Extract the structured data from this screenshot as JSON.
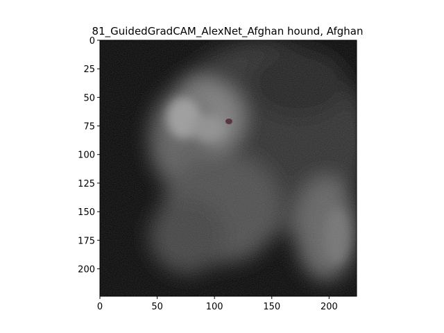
{
  "figure": {
    "title": "81_GuidedGradCAM_AlexNet_Afghan hound, Afghan"
  },
  "chart_data": {
    "type": "heatmap",
    "title": "81_GuidedGradCAM_AlexNet_Afghan hound, Afghan",
    "xlabel": "",
    "ylabel": "",
    "xlim": [
      0,
      224
    ],
    "ylim": [
      224,
      0
    ],
    "x_ticks": [
      0,
      50,
      100,
      150,
      200
    ],
    "y_ticks": [
      0,
      25,
      50,
      75,
      100,
      125,
      150,
      175,
      200
    ],
    "x_tick_labels": [
      "0",
      "50",
      "100",
      "150",
      "200"
    ],
    "y_tick_labels": [
      "0",
      "25",
      "50",
      "75",
      "100",
      "125",
      "150",
      "175",
      "200"
    ],
    "colormap": "grayscale",
    "background_color": "#000000",
    "highlight_color": "#8a8a8a",
    "grid": false
  }
}
